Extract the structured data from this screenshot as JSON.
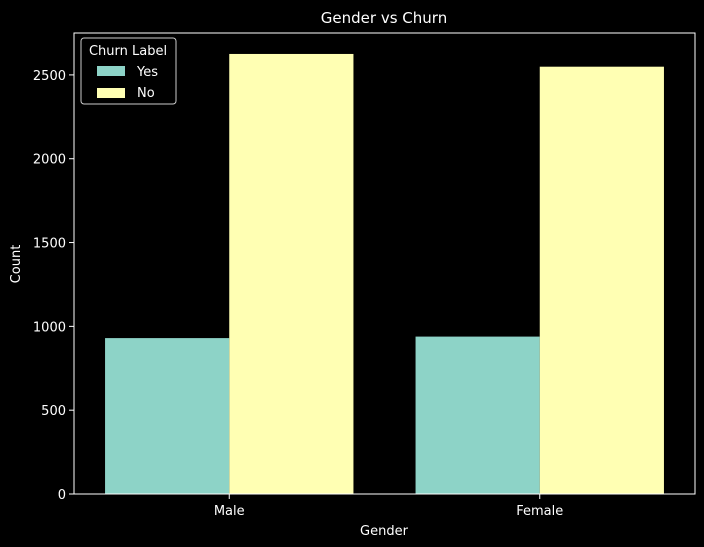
{
  "chart_data": {
    "type": "bar",
    "title": "Gender vs Churn",
    "xlabel": "Gender",
    "ylabel": "Count",
    "categories": [
      "Male",
      "Female"
    ],
    "series": [
      {
        "name": "Yes",
        "values": [
          930,
          939
        ],
        "color": "#8dd3c7"
      },
      {
        "name": "No",
        "values": [
          2625,
          2549
        ],
        "color": "#ffffb3"
      }
    ],
    "ylim": [
      0,
      2750
    ],
    "yticks": [
      0,
      500,
      1000,
      1500,
      2000,
      2500
    ],
    "legend": {
      "title": "Churn Label",
      "position": "top-left"
    },
    "grid": false,
    "background": "#000000",
    "foreground": "#ffffff"
  }
}
